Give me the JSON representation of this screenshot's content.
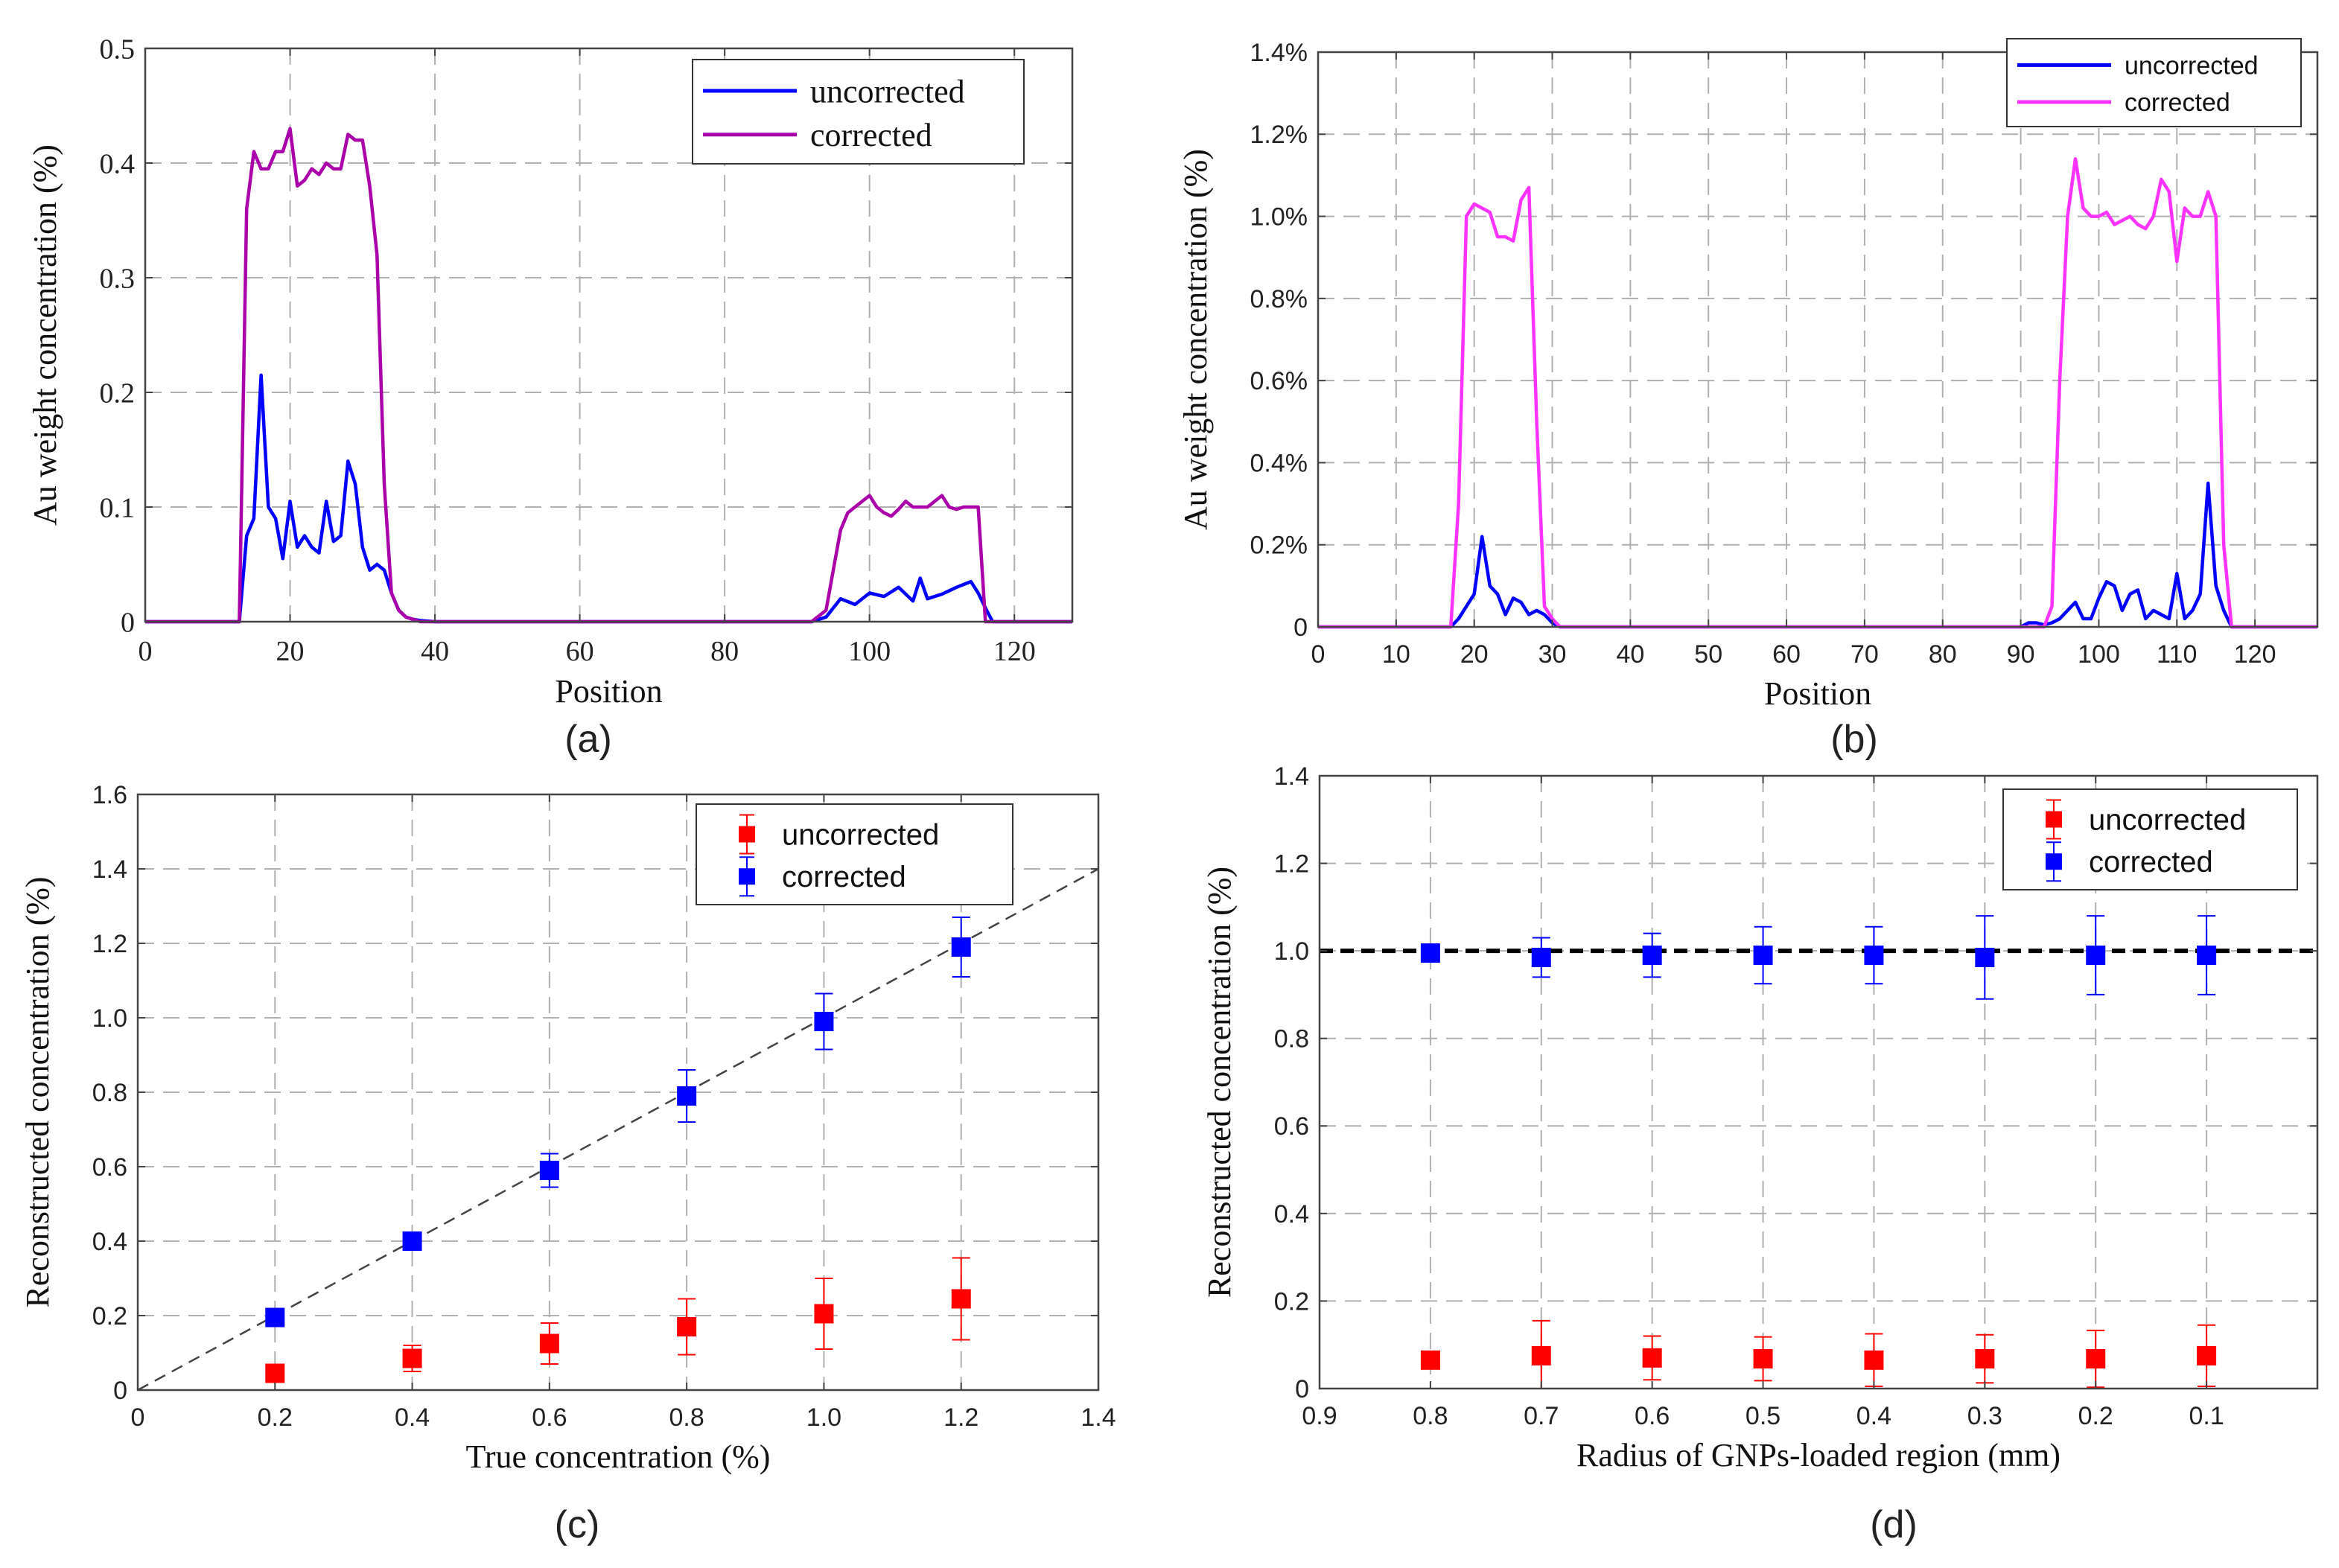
{
  "chart_data": [
    {
      "id": "a",
      "type": "line",
      "panel_label": "(a)",
      "xlabel": "Position",
      "ylabel": "Au weight concentration (%)",
      "xlim": [
        0,
        128
      ],
      "ylim": [
        0,
        0.5
      ],
      "xticks": [
        0,
        20,
        40,
        60,
        80,
        100,
        120
      ],
      "yticks": [
        0,
        0.1,
        0.2,
        0.3,
        0.4,
        0.5
      ],
      "xtick_labels": [
        "0",
        "20",
        "40",
        "60",
        "80",
        "100",
        "120"
      ],
      "ytick_labels": [
        "0",
        "0.1",
        "0.2",
        "0.3",
        "0.4",
        "0.5"
      ],
      "grid": true,
      "legend": "top-right",
      "series": [
        {
          "name": "uncorrected",
          "color": "#0000ff",
          "x": [
            0,
            13,
            14,
            15,
            16,
            17,
            18,
            19,
            20,
            21,
            22,
            23,
            24,
            25,
            26,
            27,
            28,
            29,
            30,
            31,
            32,
            33,
            34,
            35,
            36,
            37,
            38,
            40,
            60,
            80,
            92,
            94,
            96,
            98,
            100,
            102,
            104,
            106,
            107,
            108,
            110,
            112,
            114,
            115,
            116,
            117,
            118,
            128
          ],
          "y": [
            0,
            0,
            0.075,
            0.09,
            0.215,
            0.1,
            0.09,
            0.055,
            0.105,
            0.065,
            0.075,
            0.065,
            0.06,
            0.105,
            0.07,
            0.075,
            0.14,
            0.12,
            0.065,
            0.045,
            0.05,
            0.045,
            0.025,
            0.01,
            0.004,
            0.002,
            0.001,
            0,
            0,
            0,
            0,
            0.004,
            0.02,
            0.015,
            0.025,
            0.022,
            0.03,
            0.018,
            0.038,
            0.02,
            0.024,
            0.03,
            0.035,
            0.025,
            0.012,
            0,
            0,
            0
          ]
        },
        {
          "name": "corrected",
          "color": "#aa00aa",
          "x": [
            0,
            13,
            14,
            15,
            16,
            17,
            18,
            19,
            20,
            21,
            22,
            23,
            24,
            25,
            26,
            27,
            28,
            29,
            30,
            31,
            32,
            33,
            34,
            35,
            36,
            37,
            38,
            60,
            80,
            92,
            94,
            95,
            96,
            97,
            98,
            99,
            100,
            101,
            102,
            103,
            104,
            105,
            106,
            107,
            108,
            109,
            110,
            111,
            112,
            113,
            114,
            115,
            116,
            117,
            118,
            128
          ],
          "y": [
            0,
            0,
            0.36,
            0.41,
            0.395,
            0.395,
            0.41,
            0.41,
            0.43,
            0.38,
            0.385,
            0.395,
            0.39,
            0.4,
            0.395,
            0.395,
            0.425,
            0.42,
            0.42,
            0.38,
            0.32,
            0.12,
            0.025,
            0.01,
            0.004,
            0.002,
            0,
            0,
            0,
            0,
            0.01,
            0.045,
            0.08,
            0.095,
            0.1,
            0.105,
            0.11,
            0.1,
            0.095,
            0.092,
            0.098,
            0.105,
            0.1,
            0.1,
            0.1,
            0.105,
            0.11,
            0.1,
            0.098,
            0.1,
            0.1,
            0.1,
            0,
            0,
            0,
            0
          ]
        }
      ]
    },
    {
      "id": "b",
      "type": "line",
      "panel_label": "(b)",
      "xlabel": "Position",
      "ylabel": "Au weight concentration (%)",
      "xlim": [
        0,
        128
      ],
      "ylim": [
        0,
        1.4
      ],
      "xticks": [
        0,
        10,
        20,
        30,
        40,
        50,
        60,
        70,
        80,
        90,
        100,
        110,
        120
      ],
      "yticks": [
        0,
        0.2,
        0.4,
        0.6,
        0.8,
        1.0,
        1.2,
        1.4
      ],
      "xtick_labels": [
        "0",
        "10",
        "20",
        "30",
        "40",
        "50",
        "60",
        "70",
        "80",
        "90",
        "100",
        "110",
        "120"
      ],
      "ytick_labels": [
        "0",
        "0.2%",
        "0.4%",
        "0.6%",
        "0.8%",
        "1.0%",
        "1.2%",
        "1.4%"
      ],
      "grid": true,
      "legend": "top-right",
      "series": [
        {
          "name": "uncorrected",
          "color": "#0000ff",
          "x": [
            0,
            17,
            18,
            19,
            20,
            21,
            22,
            23,
            24,
            25,
            26,
            27,
            28,
            29,
            30,
            31,
            40,
            80,
            90,
            91,
            92,
            93,
            94,
            95,
            96,
            97,
            98,
            99,
            100,
            101,
            102,
            103,
            104,
            105,
            106,
            107,
            108,
            109,
            110,
            111,
            112,
            113,
            114,
            115,
            116,
            117,
            128
          ],
          "y": [
            0,
            0,
            0.02,
            0.05,
            0.08,
            0.22,
            0.1,
            0.08,
            0.03,
            0.07,
            0.06,
            0.03,
            0.04,
            0.03,
            0.01,
            0,
            0,
            0,
            0,
            0.01,
            0.01,
            0.005,
            0.01,
            0.02,
            0.04,
            0.06,
            0.02,
            0.02,
            0.07,
            0.11,
            0.1,
            0.04,
            0.08,
            0.09,
            0.02,
            0.04,
            0.03,
            0.02,
            0.13,
            0.02,
            0.04,
            0.08,
            0.35,
            0.1,
            0.04,
            0,
            0
          ]
        },
        {
          "name": "corrected",
          "color": "#ff33ff",
          "x": [
            0,
            17,
            18,
            19,
            20,
            21,
            22,
            23,
            24,
            25,
            26,
            27,
            28,
            29,
            30,
            31,
            40,
            80,
            90,
            91,
            92,
            93,
            94,
            95,
            96,
            97,
            98,
            99,
            100,
            101,
            102,
            103,
            104,
            105,
            106,
            107,
            108,
            109,
            110,
            111,
            112,
            113,
            114,
            115,
            116,
            117,
            128
          ],
          "y": [
            0,
            0,
            0.3,
            1.0,
            1.03,
            1.02,
            1.01,
            0.95,
            0.95,
            0.94,
            1.04,
            1.07,
            0.5,
            0.05,
            0.02,
            0,
            0,
            0,
            0,
            0,
            0,
            0,
            0.05,
            0.6,
            1.0,
            1.14,
            1.02,
            1.0,
            1.0,
            1.01,
            0.98,
            0.99,
            1.0,
            0.98,
            0.97,
            1.0,
            1.09,
            1.06,
            0.89,
            1.02,
            1.0,
            1.0,
            1.06,
            1.0,
            0.2,
            0,
            0
          ]
        }
      ]
    },
    {
      "id": "c",
      "type": "scatter",
      "panel_label": "(c)",
      "xlabel": "True concentration (%)",
      "ylabel": "Reconstructed concentration (%)",
      "xlim": [
        0,
        1.4
      ],
      "ylim": [
        0,
        1.6
      ],
      "xticks": [
        0,
        0.2,
        0.4,
        0.6,
        0.8,
        1.0,
        1.2,
        1.4
      ],
      "yticks": [
        0,
        0.2,
        0.4,
        0.6,
        0.8,
        1.0,
        1.2,
        1.4,
        1.6
      ],
      "xtick_labels": [
        "0",
        "0.2",
        "0.4",
        "0.6",
        "0.8",
        "1.0",
        "1.2",
        "1.4"
      ],
      "ytick_labels": [
        "0",
        "0.2",
        "0.4",
        "0.6",
        "0.8",
        "1.0",
        "1.2",
        "1.4",
        "1.6"
      ],
      "grid": true,
      "legend": "top-right",
      "reference_line": {
        "x": [
          0,
          1.4
        ],
        "y": [
          0,
          1.4
        ],
        "style": "dashed",
        "color": "#444444"
      },
      "series": [
        {
          "name": "uncorrected",
          "color": "#ff0000",
          "x": [
            0.2,
            0.4,
            0.6,
            0.8,
            1.0,
            1.2
          ],
          "y": [
            0.045,
            0.085,
            0.125,
            0.17,
            0.205,
            0.245
          ],
          "err": [
            0.01,
            0.035,
            0.055,
            0.075,
            0.095,
            0.11
          ]
        },
        {
          "name": "corrected",
          "color": "#0000ff",
          "x": [
            0.2,
            0.4,
            0.6,
            0.8,
            1.0,
            1.2
          ],
          "y": [
            0.195,
            0.4,
            0.59,
            0.79,
            0.99,
            1.19
          ],
          "err": [
            0.01,
            0.02,
            0.045,
            0.07,
            0.075,
            0.08
          ]
        }
      ]
    },
    {
      "id": "d",
      "type": "scatter",
      "panel_label": "(d)",
      "xlabel": "Radius of GNPs-loaded region (mm)",
      "ylabel": "Reconstructed concentration (%)",
      "xlim": [
        0.9,
        0.0
      ],
      "ylim": [
        0,
        1.4
      ],
      "xticks": [
        0.9,
        0.8,
        0.7,
        0.6,
        0.5,
        0.4,
        0.3,
        0.2,
        0.1
      ],
      "yticks": [
        0,
        0.2,
        0.4,
        0.6,
        0.8,
        1.0,
        1.2,
        1.4
      ],
      "xtick_labels": [
        "0.9",
        "0.8",
        "0.7",
        "0.6",
        "0.5",
        "0.4",
        "0.3",
        "0.2",
        "0.1"
      ],
      "ytick_labels": [
        "0",
        "0.2",
        "0.4",
        "0.6",
        "0.8",
        "1.0",
        "1.2",
        "1.4"
      ],
      "grid": true,
      "legend": "top-right",
      "reference_line": {
        "x": [
          0.9,
          0.0
        ],
        "y": [
          1.0,
          1.0
        ],
        "style": "dashed",
        "color": "#000000"
      },
      "series": [
        {
          "name": "uncorrected",
          "color": "#ff0000",
          "x": [
            0.8,
            0.7,
            0.6,
            0.5,
            0.4,
            0.3,
            0.2,
            0.1
          ],
          "y": [
            0.065,
            0.075,
            0.07,
            0.068,
            0.065,
            0.068,
            0.068,
            0.075
          ],
          "err": [
            0.01,
            0.08,
            0.05,
            0.05,
            0.06,
            0.055,
            0.065,
            0.07
          ]
        },
        {
          "name": "corrected",
          "color": "#0000ff",
          "x": [
            0.8,
            0.7,
            0.6,
            0.5,
            0.4,
            0.3,
            0.2,
            0.1
          ],
          "y": [
            0.995,
            0.985,
            0.99,
            0.99,
            0.99,
            0.985,
            0.99,
            0.99
          ],
          "err": [
            0.01,
            0.045,
            0.05,
            0.065,
            0.065,
            0.095,
            0.09,
            0.09
          ]
        }
      ]
    }
  ]
}
